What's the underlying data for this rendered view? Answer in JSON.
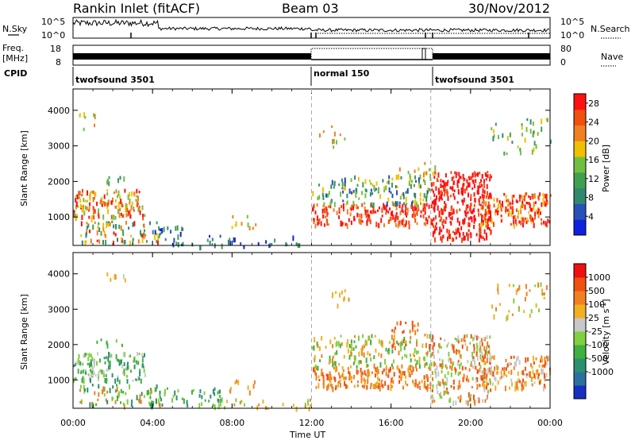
{
  "header": {
    "station": "Rankin Inlet (fitACF)",
    "beam": "Beam 03",
    "date": "30/Nov/2012"
  },
  "left_labels": {
    "nsky": "N.Sky",
    "freq": "Freq.",
    "mhz": "[MHz]",
    "cpid": "CPID"
  },
  "right_labels": {
    "nsearch": "N.Search",
    "nave": "Nave"
  },
  "chart_data": [
    {
      "type": "line",
      "panel": "noise",
      "series": [
        {
          "name": "N.Sky"
        },
        {
          "name": "N.Search"
        }
      ],
      "ytick_left": [
        "10^5",
        "10^0"
      ],
      "ytick_right": [
        "10^5",
        "10^0"
      ],
      "scale": "log"
    },
    {
      "type": "line",
      "panel": "frequency",
      "series": [
        {
          "name": "Freq."
        },
        {
          "name": "Nave"
        }
      ],
      "ytick_left": [
        "18",
        "8"
      ],
      "ytick_right": [
        "80",
        "0"
      ],
      "ylim_left": [
        8,
        18
      ],
      "ylim_right": [
        0,
        80
      ]
    },
    {
      "type": "table",
      "panel": "cpid",
      "segments": [
        {
          "label": "twofsound 3501",
          "start_h": 0,
          "end_h": 12
        },
        {
          "label": "normal 150",
          "start_h": 12,
          "end_h": 18
        },
        {
          "label": "twofsound 3501",
          "start_h": 18,
          "end_h": 24
        }
      ]
    },
    {
      "type": "heatmap",
      "panel": "power",
      "ylabel": "Slant Range [km]",
      "yticks": [
        "1000",
        "2000",
        "3000",
        "4000"
      ],
      "ylim": [
        200,
        4600
      ],
      "colorbar": {
        "label": "Power [dB]",
        "ticks": [
          "28",
          "24",
          "20",
          "16",
          "12",
          "8",
          "4"
        ],
        "range": [
          0,
          30
        ],
        "colors": [
          "#1020e0",
          "#2850b8",
          "#308870",
          "#40a050",
          "#70c040",
          "#f0c000",
          "#f08020",
          "#f05010",
          "#ff1010"
        ]
      }
    },
    {
      "type": "heatmap",
      "panel": "velocity",
      "ylabel": "Slant Range [km]",
      "yticks": [
        "1000",
        "2000",
        "3000",
        "4000"
      ],
      "ylim": [
        200,
        4600
      ],
      "colorbar": {
        "label": "Velocity [m s^-1]",
        "ticks": [
          "1000",
          "500",
          "100",
          "25",
          "-25",
          "-100",
          "-500",
          "-1000"
        ],
        "colors": [
          "#1830c0",
          "#2c70a0",
          "#2c9070",
          "#40b040",
          "#80d040",
          "#c8c8c8",
          "#f0b020",
          "#f08020",
          "#f05010",
          "#f01010"
        ]
      }
    }
  ],
  "xaxis": {
    "label": "Time UT",
    "ticks": [
      "00:00",
      "04:00",
      "08:00",
      "12:00",
      "16:00",
      "20:00",
      "00:00"
    ],
    "range_h": [
      0,
      24
    ]
  }
}
